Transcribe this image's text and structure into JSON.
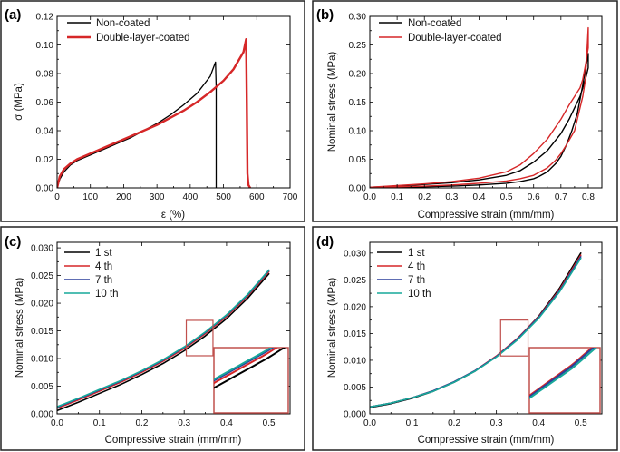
{
  "chart_data": [
    {
      "id": "a",
      "type": "line",
      "panel_label": "(a)",
      "xlabel": "ε (%)",
      "ylabel": "σ (MPa)",
      "xlim": [
        0,
        700
      ],
      "ylim": [
        0,
        0.12
      ],
      "xticks": [
        0,
        100,
        200,
        300,
        400,
        500,
        600,
        700
      ],
      "yticks": [
        0.0,
        0.02,
        0.04,
        0.06,
        0.08,
        0.1,
        0.12
      ],
      "x_tick_labels": [
        "0",
        "100",
        "200",
        "300",
        "400",
        "500",
        "600",
        "700"
      ],
      "y_tick_labels": [
        "0.00",
        "0.02",
        "0.04",
        "0.06",
        "0.08",
        "0.10",
        "0.12"
      ],
      "legend_position": "top-left",
      "series": [
        {
          "name": "Non-coated",
          "color": "#000000",
          "width": 1.3,
          "x": [
            0,
            8,
            20,
            40,
            60,
            80,
            100,
            140,
            180,
            220,
            260,
            300,
            340,
            380,
            420,
            460,
            476,
            478,
            478
          ],
          "y": [
            0,
            0.006,
            0.011,
            0.016,
            0.019,
            0.021,
            0.023,
            0.027,
            0.031,
            0.035,
            0.04,
            0.045,
            0.051,
            0.058,
            0.066,
            0.078,
            0.088,
            0.07,
            0.0
          ]
        },
        {
          "name": "Double-layer-coated",
          "color": "#d62728",
          "width": 2.4,
          "x": [
            0,
            8,
            20,
            40,
            60,
            80,
            100,
            140,
            180,
            220,
            260,
            300,
            340,
            380,
            420,
            460,
            500,
            530,
            560,
            568,
            570,
            572,
            575,
            580
          ],
          "y": [
            0,
            0.008,
            0.013,
            0.017,
            0.02,
            0.022,
            0.024,
            0.028,
            0.032,
            0.036,
            0.04,
            0.044,
            0.049,
            0.054,
            0.06,
            0.067,
            0.075,
            0.083,
            0.095,
            0.104,
            0.06,
            0.01,
            0.002,
            0.0
          ]
        }
      ]
    },
    {
      "id": "b",
      "type": "line",
      "panel_label": "(b)",
      "xlabel": "Compressive strain (mm/mm)",
      "ylabel": "Nominal stress (MPa)",
      "xlim": [
        0,
        0.85
      ],
      "ylim": [
        0,
        0.3
      ],
      "xticks": [
        0.0,
        0.1,
        0.2,
        0.3,
        0.4,
        0.5,
        0.6,
        0.7,
        0.8
      ],
      "yticks": [
        0.0,
        0.05,
        0.1,
        0.15,
        0.2,
        0.25,
        0.3
      ],
      "x_tick_labels": [
        "0.0",
        "0.1",
        "0.2",
        "0.3",
        "0.4",
        "0.5",
        "0.6",
        "0.7",
        "0.8"
      ],
      "y_tick_labels": [
        "0.00",
        "0.05",
        "0.10",
        "0.15",
        "0.20",
        "0.25",
        "0.30"
      ],
      "legend_position": "top-left",
      "series": [
        {
          "name": "Non-coated",
          "color": "#000000",
          "width": 1.4,
          "x": [
            0,
            0.1,
            0.2,
            0.3,
            0.4,
            0.5,
            0.55,
            0.6,
            0.65,
            0.7,
            0.73,
            0.75,
            0.77,
            0.78,
            0.79,
            0.8,
            0.8,
            0.78,
            0.76,
            0.74,
            0.72,
            0.7,
            0.68,
            0.65,
            0.62,
            0.6,
            0.55,
            0.5,
            0.4,
            0.3,
            0.2,
            0.1,
            0.0
          ],
          "y": [
            0.001,
            0.003,
            0.006,
            0.009,
            0.014,
            0.022,
            0.03,
            0.045,
            0.065,
            0.095,
            0.12,
            0.14,
            0.16,
            0.175,
            0.19,
            0.21,
            0.235,
            0.18,
            0.13,
            0.1,
            0.075,
            0.055,
            0.042,
            0.028,
            0.02,
            0.016,
            0.011,
            0.008,
            0.005,
            0.003,
            0.002,
            0.001,
            0.0
          ]
        },
        {
          "name": "Double-layer-coated",
          "color": "#d62728",
          "width": 1.4,
          "x": [
            0,
            0.1,
            0.2,
            0.3,
            0.4,
            0.5,
            0.55,
            0.6,
            0.65,
            0.7,
            0.73,
            0.75,
            0.77,
            0.78,
            0.79,
            0.8,
            0.8,
            0.79,
            0.78,
            0.77,
            0.76,
            0.75,
            0.72,
            0.7,
            0.68,
            0.65,
            0.6,
            0.55,
            0.5,
            0.4,
            0.3,
            0.2,
            0.1,
            0.0
          ],
          "y": [
            0.001,
            0.004,
            0.007,
            0.011,
            0.017,
            0.028,
            0.04,
            0.06,
            0.085,
            0.12,
            0.145,
            0.16,
            0.175,
            0.19,
            0.215,
            0.245,
            0.28,
            0.19,
            0.16,
            0.14,
            0.12,
            0.1,
            0.075,
            0.06,
            0.048,
            0.035,
            0.022,
            0.016,
            0.012,
            0.008,
            0.005,
            0.003,
            0.002,
            0.001
          ]
        }
      ]
    },
    {
      "id": "c",
      "type": "line",
      "panel_label": "(c)",
      "xlabel": "Compressive strain (mm/mm)",
      "ylabel": "Nominal stress (MPa)",
      "xlim": [
        0,
        0.55
      ],
      "ylim": [
        0,
        0.031
      ],
      "xticks": [
        0.0,
        0.1,
        0.2,
        0.3,
        0.4,
        0.5
      ],
      "yticks": [
        0.0,
        0.005,
        0.01,
        0.015,
        0.02,
        0.025,
        0.03
      ],
      "x_tick_labels": [
        "0.0",
        "0.1",
        "0.2",
        "0.3",
        "0.4",
        "0.5"
      ],
      "y_tick_labels": [
        "0.000",
        "0.005",
        "0.010",
        "0.015",
        "0.020",
        "0.025",
        "0.030"
      ],
      "legend_position": "top-left",
      "series": [
        {
          "name": "1 st",
          "color": "#000000",
          "width": 1.6,
          "x": [
            0,
            0.05,
            0.1,
            0.15,
            0.2,
            0.25,
            0.3,
            0.35,
            0.4,
            0.45,
            0.5
          ],
          "y": [
            0.0006,
            0.0021,
            0.0037,
            0.0053,
            0.0071,
            0.0091,
            0.0114,
            0.0141,
            0.0172,
            0.0209,
            0.0253
          ]
        },
        {
          "name": "4 th",
          "color": "#d62728",
          "width": 1.6,
          "x": [
            0,
            0.05,
            0.1,
            0.15,
            0.2,
            0.25,
            0.3,
            0.35,
            0.4,
            0.45,
            0.5
          ],
          "y": [
            0.001,
            0.0025,
            0.0041,
            0.0057,
            0.0075,
            0.0095,
            0.0118,
            0.0145,
            0.0176,
            0.0213,
            0.0257
          ]
        },
        {
          "name": "7 th",
          "color": "#2b3e9b",
          "width": 1.6,
          "x": [
            0,
            0.05,
            0.1,
            0.15,
            0.2,
            0.25,
            0.3,
            0.35,
            0.4,
            0.45,
            0.5
          ],
          "y": [
            0.0012,
            0.0027,
            0.0043,
            0.0059,
            0.0077,
            0.0097,
            0.012,
            0.0147,
            0.0178,
            0.0215,
            0.0259
          ]
        },
        {
          "name": "10 th",
          "color": "#17a89a",
          "width": 1.6,
          "x": [
            0,
            0.05,
            0.1,
            0.15,
            0.2,
            0.25,
            0.3,
            0.35,
            0.4,
            0.45,
            0.5
          ],
          "y": [
            0.0013,
            0.0028,
            0.0044,
            0.006,
            0.0078,
            0.0098,
            0.0121,
            0.0148,
            0.0179,
            0.0216,
            0.026
          ]
        }
      ]
    },
    {
      "id": "d",
      "type": "line",
      "panel_label": "(d)",
      "xlabel": "Compressive strain (mm/mm)",
      "ylabel": "Nominal stress (MPa)",
      "xlim": [
        0,
        0.55
      ],
      "ylim": [
        0,
        0.032
      ],
      "xticks": [
        0.0,
        0.1,
        0.2,
        0.3,
        0.4,
        0.5
      ],
      "yticks": [
        0.0,
        0.005,
        0.01,
        0.015,
        0.02,
        0.025,
        0.03
      ],
      "x_tick_labels": [
        "0.0",
        "0.1",
        "0.2",
        "0.3",
        "0.4",
        "0.5"
      ],
      "y_tick_labels": [
        "0.000",
        "0.005",
        "0.010",
        "0.015",
        "0.020",
        "0.025",
        "0.030"
      ],
      "legend_position": "top-left",
      "series": [
        {
          "name": "1 st",
          "color": "#000000",
          "width": 1.6,
          "x": [
            0,
            0.05,
            0.1,
            0.15,
            0.2,
            0.25,
            0.3,
            0.35,
            0.4,
            0.45,
            0.5
          ],
          "y": [
            0.0012,
            0.0019,
            0.0029,
            0.0042,
            0.0059,
            0.008,
            0.0107,
            0.014,
            0.0182,
            0.0235,
            0.03
          ]
        },
        {
          "name": "4 th",
          "color": "#d62728",
          "width": 1.6,
          "x": [
            0,
            0.05,
            0.1,
            0.15,
            0.2,
            0.25,
            0.3,
            0.35,
            0.4,
            0.45,
            0.5
          ],
          "y": [
            0.0013,
            0.002,
            0.003,
            0.0043,
            0.006,
            0.0081,
            0.0108,
            0.0141,
            0.0181,
            0.0232,
            0.0296
          ]
        },
        {
          "name": "7 th",
          "color": "#2b3e9b",
          "width": 1.6,
          "x": [
            0,
            0.05,
            0.1,
            0.15,
            0.2,
            0.25,
            0.3,
            0.35,
            0.4,
            0.45,
            0.5
          ],
          "y": [
            0.0013,
            0.002,
            0.003,
            0.0043,
            0.006,
            0.0081,
            0.0107,
            0.014,
            0.018,
            0.023,
            0.0293
          ]
        },
        {
          "name": "10 th",
          "color": "#17a89a",
          "width": 1.6,
          "x": [
            0,
            0.05,
            0.1,
            0.15,
            0.2,
            0.25,
            0.3,
            0.35,
            0.4,
            0.45,
            0.5
          ],
          "y": [
            0.0013,
            0.002,
            0.003,
            0.0042,
            0.0059,
            0.008,
            0.0106,
            0.0138,
            0.0178,
            0.0228,
            0.029
          ]
        }
      ]
    }
  ]
}
